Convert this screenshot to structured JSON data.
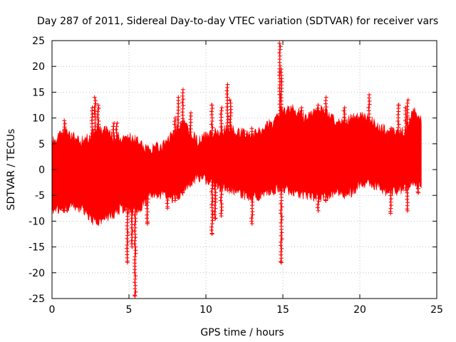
{
  "chart_data": {
    "type": "scatter",
    "title": "Day 287 of 2011, Sidereal Day-to-day VTEC variation (SDTVAR) for receiver vars",
    "xlabel": "GPS time / hours",
    "ylabel": "SDTVAR / TECUs",
    "xlim": [
      0,
      25
    ],
    "ylim": [
      -25,
      25
    ],
    "xticks": [
      0,
      5,
      10,
      15,
      20,
      25
    ],
    "yticks": [
      -25,
      -20,
      -15,
      -10,
      -5,
      0,
      5,
      10,
      15,
      20,
      25
    ],
    "grid": true,
    "marker": "+",
    "color": "#ff0000",
    "series": [
      {
        "name": "SDTVAR",
        "envelope": {
          "x": [
            0.0,
            0.5,
            1.0,
            1.5,
            2.0,
            2.5,
            3.0,
            3.5,
            4.0,
            4.5,
            5.0,
            5.5,
            6.0,
            6.5,
            7.0,
            7.5,
            8.0,
            8.5,
            9.0,
            9.5,
            10.0,
            10.5,
            11.0,
            11.5,
            12.0,
            12.5,
            13.0,
            13.5,
            14.0,
            14.5,
            15.0,
            15.5,
            16.0,
            16.5,
            17.0,
            17.5,
            18.0,
            18.5,
            19.0,
            19.5,
            20.0,
            20.5,
            21.0,
            21.5,
            22.0,
            22.5,
            23.0,
            23.5,
            24.0
          ],
          "upper": [
            5,
            6,
            7,
            5.5,
            5,
            6,
            8,
            7,
            6,
            5.5,
            6,
            5,
            4,
            3.5,
            4,
            5,
            7,
            9,
            7,
            5,
            6,
            6.5,
            7,
            7.5,
            7,
            6.5,
            6,
            7,
            8,
            9,
            11,
            11.5,
            10.5,
            9.5,
            10.5,
            11,
            10,
            9,
            9,
            9.5,
            10,
            9.5,
            8.5,
            7.5,
            7,
            6.5,
            7,
            11,
            9
          ],
          "lower": [
            -7,
            -7.5,
            -7,
            -6.5,
            -7,
            -9,
            -10,
            -9,
            -8,
            -7,
            -7.5,
            -7.5,
            -6,
            -4,
            -4.5,
            -5,
            -5,
            -4,
            -2,
            -1,
            -1.5,
            -2.5,
            -3,
            -3.5,
            -4,
            -4.5,
            -5,
            -4.5,
            -4,
            -3.5,
            -3,
            -3.5,
            -4,
            -4.5,
            -5,
            -5,
            -4.5,
            -4,
            -4.5,
            -4,
            -2.5,
            -2,
            -2.5,
            -3.5,
            -4,
            -3.5,
            -3,
            -2,
            -3
          ]
        },
        "spikes": [
          {
            "x": 0.6,
            "lo": -7,
            "hi": 7
          },
          {
            "x": 0.8,
            "lo": -8,
            "hi": 9.5
          },
          {
            "x": 2.6,
            "lo": -5,
            "hi": 12
          },
          {
            "x": 2.8,
            "lo": -8,
            "hi": 14
          },
          {
            "x": 3.0,
            "lo": -9,
            "hi": 12.5
          },
          {
            "x": 4.0,
            "lo": -8,
            "hi": 9
          },
          {
            "x": 4.2,
            "lo": -7,
            "hi": 9
          },
          {
            "x": 4.9,
            "lo": -18,
            "hi": 4
          },
          {
            "x": 5.2,
            "lo": -15,
            "hi": 3
          },
          {
            "x": 5.4,
            "lo": -24.5,
            "hi": 3
          },
          {
            "x": 6.2,
            "lo": -10.5,
            "hi": 3
          },
          {
            "x": 7.5,
            "lo": -7.5,
            "hi": 4
          },
          {
            "x": 8.0,
            "lo": -6,
            "hi": 10
          },
          {
            "x": 8.2,
            "lo": -5.5,
            "hi": 14
          },
          {
            "x": 8.5,
            "lo": -4.5,
            "hi": 15.5
          },
          {
            "x": 9.0,
            "lo": -3,
            "hi": 11
          },
          {
            "x": 10.4,
            "lo": -12.5,
            "hi": 12.5
          },
          {
            "x": 10.6,
            "lo": -9.5,
            "hi": 5.5
          },
          {
            "x": 11.0,
            "lo": -9,
            "hi": 12
          },
          {
            "x": 11.4,
            "lo": -4,
            "hi": 16.5
          },
          {
            "x": 11.6,
            "lo": -4,
            "hi": 13.5
          },
          {
            "x": 12.5,
            "lo": -4,
            "hi": 7.5
          },
          {
            "x": 13.0,
            "lo": -10.5,
            "hi": 8
          },
          {
            "x": 14.8,
            "lo": -4,
            "hi": 24.5
          },
          {
            "x": 14.9,
            "lo": -18,
            "hi": 19.5
          },
          {
            "x": 16.2,
            "lo": -4,
            "hi": 12
          },
          {
            "x": 16.8,
            "lo": -4.5,
            "hi": 9
          },
          {
            "x": 17.3,
            "lo": -8,
            "hi": 12.5
          },
          {
            "x": 17.8,
            "lo": -6,
            "hi": 14
          },
          {
            "x": 19.0,
            "lo": -5,
            "hi": 12
          },
          {
            "x": 20.6,
            "lo": -2,
            "hi": 14.5
          },
          {
            "x": 22.0,
            "lo": -8.5,
            "hi": 8
          },
          {
            "x": 22.5,
            "lo": -3,
            "hi": 12.5
          },
          {
            "x": 23.0,
            "lo": -4,
            "hi": 12
          },
          {
            "x": 23.1,
            "lo": -8,
            "hi": 13.5
          },
          {
            "x": 23.5,
            "lo": -2.5,
            "hi": 11
          },
          {
            "x": 23.8,
            "lo": -4.5,
            "hi": 10
          }
        ],
        "isolated_points": [
          {
            "x": 10.4,
            "y": 12.5
          },
          {
            "x": 22.5,
            "y": 12.5
          },
          {
            "x": 14.9,
            "y": -18
          },
          {
            "x": 6.2,
            "y": -10.3
          }
        ]
      }
    ]
  }
}
